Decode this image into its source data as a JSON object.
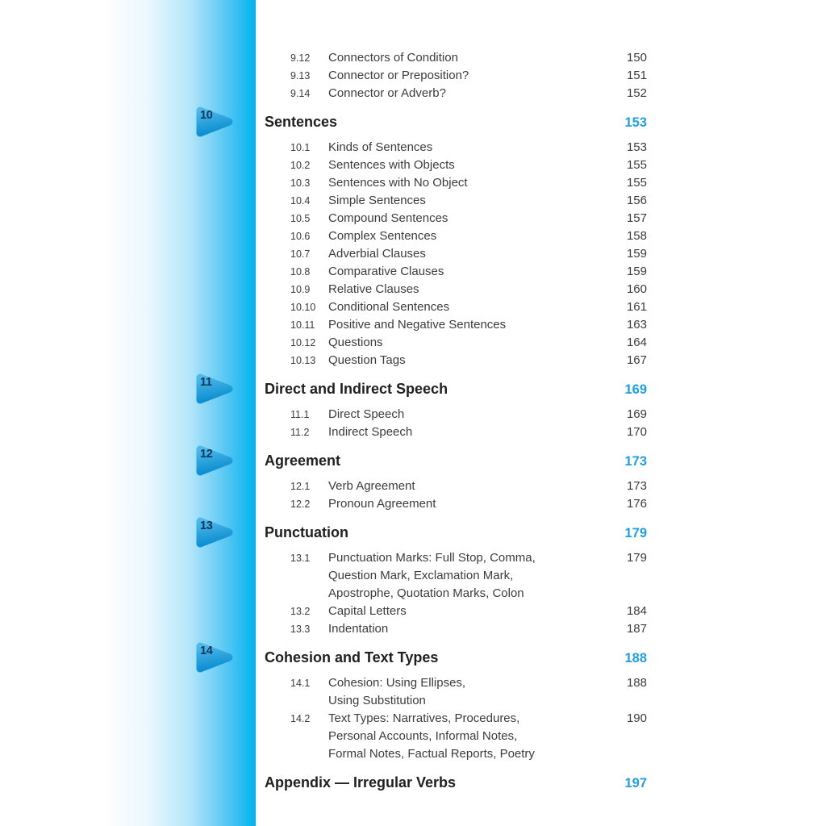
{
  "colors": {
    "accent_blue": "#22a0dc",
    "sidebar_cyan": "#00b2f0",
    "marker_light": "#4fb9e8",
    "marker_dark": "#0e90d2",
    "marker_number": "#14365f",
    "body_text": "#3c3c3c",
    "heading_text": "#202020"
  },
  "toc": {
    "entries": [
      {
        "kind": "item",
        "num": "9.12",
        "lines": [
          "Connectors of Condition"
        ],
        "page": "150"
      },
      {
        "kind": "item",
        "num": "9.13",
        "lines": [
          "Connector or Preposition?"
        ],
        "page": "151"
      },
      {
        "kind": "item",
        "num": "9.14",
        "lines": [
          "Connector or Adverb?"
        ],
        "page": "152"
      },
      {
        "kind": "chapter",
        "marker": "10",
        "title": "Sentences",
        "page": "153"
      },
      {
        "kind": "item",
        "num": "10.1",
        "lines": [
          "Kinds of Sentences"
        ],
        "page": "153"
      },
      {
        "kind": "item",
        "num": "10.2",
        "lines": [
          "Sentences with Objects"
        ],
        "page": "155"
      },
      {
        "kind": "item",
        "num": "10.3",
        "lines": [
          "Sentences with No Object"
        ],
        "page": "155"
      },
      {
        "kind": "item",
        "num": "10.4",
        "lines": [
          "Simple Sentences"
        ],
        "page": "156"
      },
      {
        "kind": "item",
        "num": "10.5",
        "lines": [
          "Compound Sentences"
        ],
        "page": "157"
      },
      {
        "kind": "item",
        "num": "10.6",
        "lines": [
          "Complex Sentences"
        ],
        "page": "158"
      },
      {
        "kind": "item",
        "num": "10.7",
        "lines": [
          "Adverbial Clauses"
        ],
        "page": "159"
      },
      {
        "kind": "item",
        "num": "10.8",
        "lines": [
          "Comparative Clauses"
        ],
        "page": "159"
      },
      {
        "kind": "item",
        "num": "10.9",
        "lines": [
          "Relative Clauses"
        ],
        "page": "160"
      },
      {
        "kind": "item",
        "num": "10.10",
        "lines": [
          "Conditional Sentences"
        ],
        "page": "161"
      },
      {
        "kind": "item",
        "num": "10.11",
        "lines": [
          "Positive and Negative Sentences"
        ],
        "page": "163"
      },
      {
        "kind": "item",
        "num": "10.12",
        "lines": [
          "Questions"
        ],
        "page": "164"
      },
      {
        "kind": "item",
        "num": "10.13",
        "lines": [
          "Question Tags"
        ],
        "page": "167"
      },
      {
        "kind": "chapter",
        "marker": "11",
        "title": "Direct and Indirect Speech",
        "page": "169"
      },
      {
        "kind": "item",
        "num": "11.1",
        "lines": [
          "Direct Speech"
        ],
        "page": "169"
      },
      {
        "kind": "item",
        "num": "11.2",
        "lines": [
          "Indirect Speech"
        ],
        "page": "170"
      },
      {
        "kind": "chapter",
        "marker": "12",
        "title": "Agreement",
        "page": "173"
      },
      {
        "kind": "item",
        "num": "12.1",
        "lines": [
          "Verb Agreement"
        ],
        "page": "173"
      },
      {
        "kind": "item",
        "num": "12.2",
        "lines": [
          "Pronoun Agreement"
        ],
        "page": "176"
      },
      {
        "kind": "chapter",
        "marker": "13",
        "title": "Punctuation",
        "page": "179"
      },
      {
        "kind": "item",
        "num": "13.1",
        "lines": [
          "Punctuation Marks: Full Stop, Comma,",
          "Question Mark, Exclamation Mark,",
          "Apostrophe, Quotation Marks, Colon"
        ],
        "page": "179"
      },
      {
        "kind": "item",
        "num": "13.2",
        "lines": [
          "Capital Letters"
        ],
        "page": "184"
      },
      {
        "kind": "item",
        "num": "13.3",
        "lines": [
          "Indentation"
        ],
        "page": "187"
      },
      {
        "kind": "chapter",
        "marker": "14",
        "title": "Cohesion and Text Types",
        "page": "188"
      },
      {
        "kind": "item",
        "num": "14.1",
        "lines": [
          "Cohesion: Using Ellipses,",
          "Using Substitution"
        ],
        "page": "188"
      },
      {
        "kind": "item",
        "num": "14.2",
        "lines": [
          "Text Types: Narratives, Procedures,",
          "Personal Accounts, Informal Notes,",
          "Formal Notes, Factual Reports, Poetry"
        ],
        "page": "190"
      },
      {
        "kind": "chapter",
        "title": "Appendix — Irregular Verbs",
        "page": "197"
      }
    ]
  }
}
